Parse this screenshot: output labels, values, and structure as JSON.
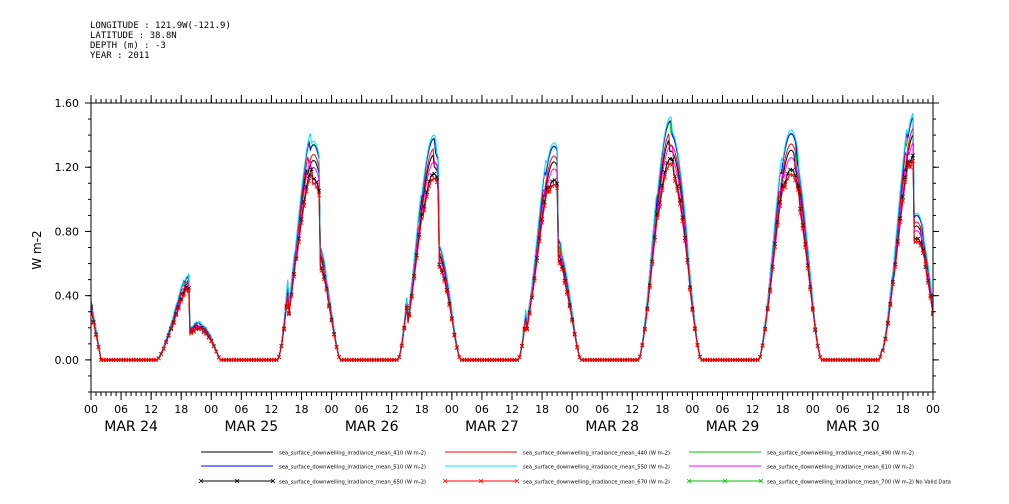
{
  "header": {
    "lines": [
      "LONGITUDE : 121.9W(-121.9)",
      "LATITUDE : 38.8N",
      "DEPTH (m) : -3",
      "YEAR : 2011"
    ]
  },
  "chart_data": {
    "type": "line",
    "title": "",
    "xlabel": "",
    "ylabel": "W m-2",
    "ylim": [
      -0.2,
      1.6
    ],
    "y_ticks": [
      "0.00",
      "0.40",
      "0.80",
      "1.20",
      "1.60"
    ],
    "x_range_hours": [
      0,
      168
    ],
    "x_hour_ticks": [
      "00",
      "06",
      "12",
      "18",
      "00",
      "06",
      "12",
      "18",
      "00",
      "06",
      "12",
      "18",
      "00",
      "06",
      "12",
      "18",
      "00",
      "06",
      "12",
      "18",
      "00",
      "06",
      "12",
      "18",
      "00",
      "06",
      "12",
      "18",
      "00"
    ],
    "x_day_labels": [
      "MAR 24",
      "MAR 25",
      "MAR 26",
      "MAR 27",
      "MAR 28",
      "MAR 29",
      "MAR 30"
    ],
    "daily_peaks": [
      {
        "day": "MAR 24",
        "peak_hour": 19.5,
        "peak_value": 0.55,
        "cloudy": true
      },
      {
        "day": "MAR 25",
        "peak_hour": 19.5,
        "peak_value": 1.45,
        "cloudy": true
      },
      {
        "day": "MAR 26",
        "peak_hour": 19.5,
        "peak_value": 1.4,
        "cloudy": true
      },
      {
        "day": "MAR 27",
        "peak_hour": 19.5,
        "peak_value": 1.35,
        "cloudy": true
      },
      {
        "day": "MAR 28",
        "peak_hour": 19.5,
        "peak_value": 1.45,
        "cloudy": false
      },
      {
        "day": "MAR 29",
        "peak_hour": 19.5,
        "peak_value": 1.4,
        "cloudy": false
      },
      {
        "day": "MAR 30",
        "peak_hour": 19.5,
        "peak_value": 1.45,
        "cloudy": true
      }
    ],
    "series": [
      {
        "name": "sea_surface_downwelling_irradiance_mean_410 (W m-2)",
        "color": "#000000",
        "scale": 0.92,
        "marker": "none"
      },
      {
        "name": "sea_surface_downwelling_irradiance_mean_440 (W m-2)",
        "color": "#ff0000",
        "scale": 0.95,
        "marker": "none"
      },
      {
        "name": "sea_surface_downwelling_irradiance_mean_490 (W m-2)",
        "color": "#00c000",
        "scale": 1.0,
        "marker": "none"
      },
      {
        "name": "sea_surface_downwelling_irradiance_mean_510 (W m-2)",
        "color": "#0000ff",
        "scale": 1.0,
        "marker": "none"
      },
      {
        "name": "sea_surface_downwelling_irradiance_mean_550 (W m-2)",
        "color": "#00e0ff",
        "scale": 1.02,
        "marker": "none"
      },
      {
        "name": "sea_surface_downwelling_irradiance_mean_610 (W m-2)",
        "color": "#ff00ff",
        "scale": 0.9,
        "marker": "none"
      },
      {
        "name": "sea_surface_downwelling_irradiance_mean_650 (W m-2)",
        "color": "#000000",
        "scale": 0.85,
        "marker": "x"
      },
      {
        "name": "sea_surface_downwelling_irradiance_mean_670 (W m-2)",
        "color": "#ff0000",
        "scale": 0.83,
        "marker": "x"
      },
      {
        "name": "sea_surface_downwelling_irradiance_mean_700 (W m-2) No Valid Data",
        "color": "#00c000",
        "scale": 0,
        "marker": "x"
      }
    ]
  }
}
